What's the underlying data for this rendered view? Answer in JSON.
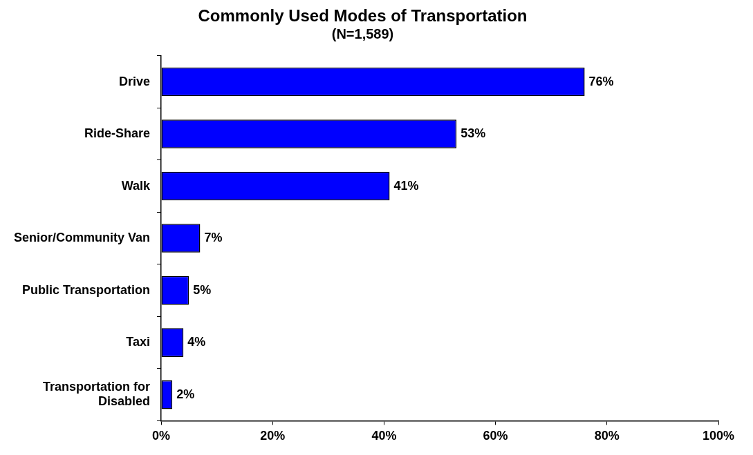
{
  "chart_data": {
    "type": "bar",
    "orientation": "horizontal",
    "title": "Commonly Used Modes of Transportation",
    "subtitle": "(N=1,589)",
    "categories": [
      "Drive",
      "Ride-Share",
      "Walk",
      "Senior/Community Van",
      "Public Transportation",
      "Taxi",
      "Transportation for Disabled"
    ],
    "values": [
      76,
      53,
      41,
      7,
      5,
      4,
      2
    ],
    "value_labels": [
      "76%",
      "53%",
      "41%",
      "7%",
      "5%",
      "4%",
      "2%"
    ],
    "color": "#0000ff",
    "xlim": [
      0,
      100
    ],
    "xticks": [
      {
        "value": 0,
        "label": "0%"
      },
      {
        "value": 20,
        "label": "20%"
      },
      {
        "value": 40,
        "label": "40%"
      },
      {
        "value": 60,
        "label": "60%"
      },
      {
        "value": 80,
        "label": "80%"
      },
      {
        "value": 100,
        "label": "100%"
      }
    ],
    "grid": false,
    "legend": false
  }
}
